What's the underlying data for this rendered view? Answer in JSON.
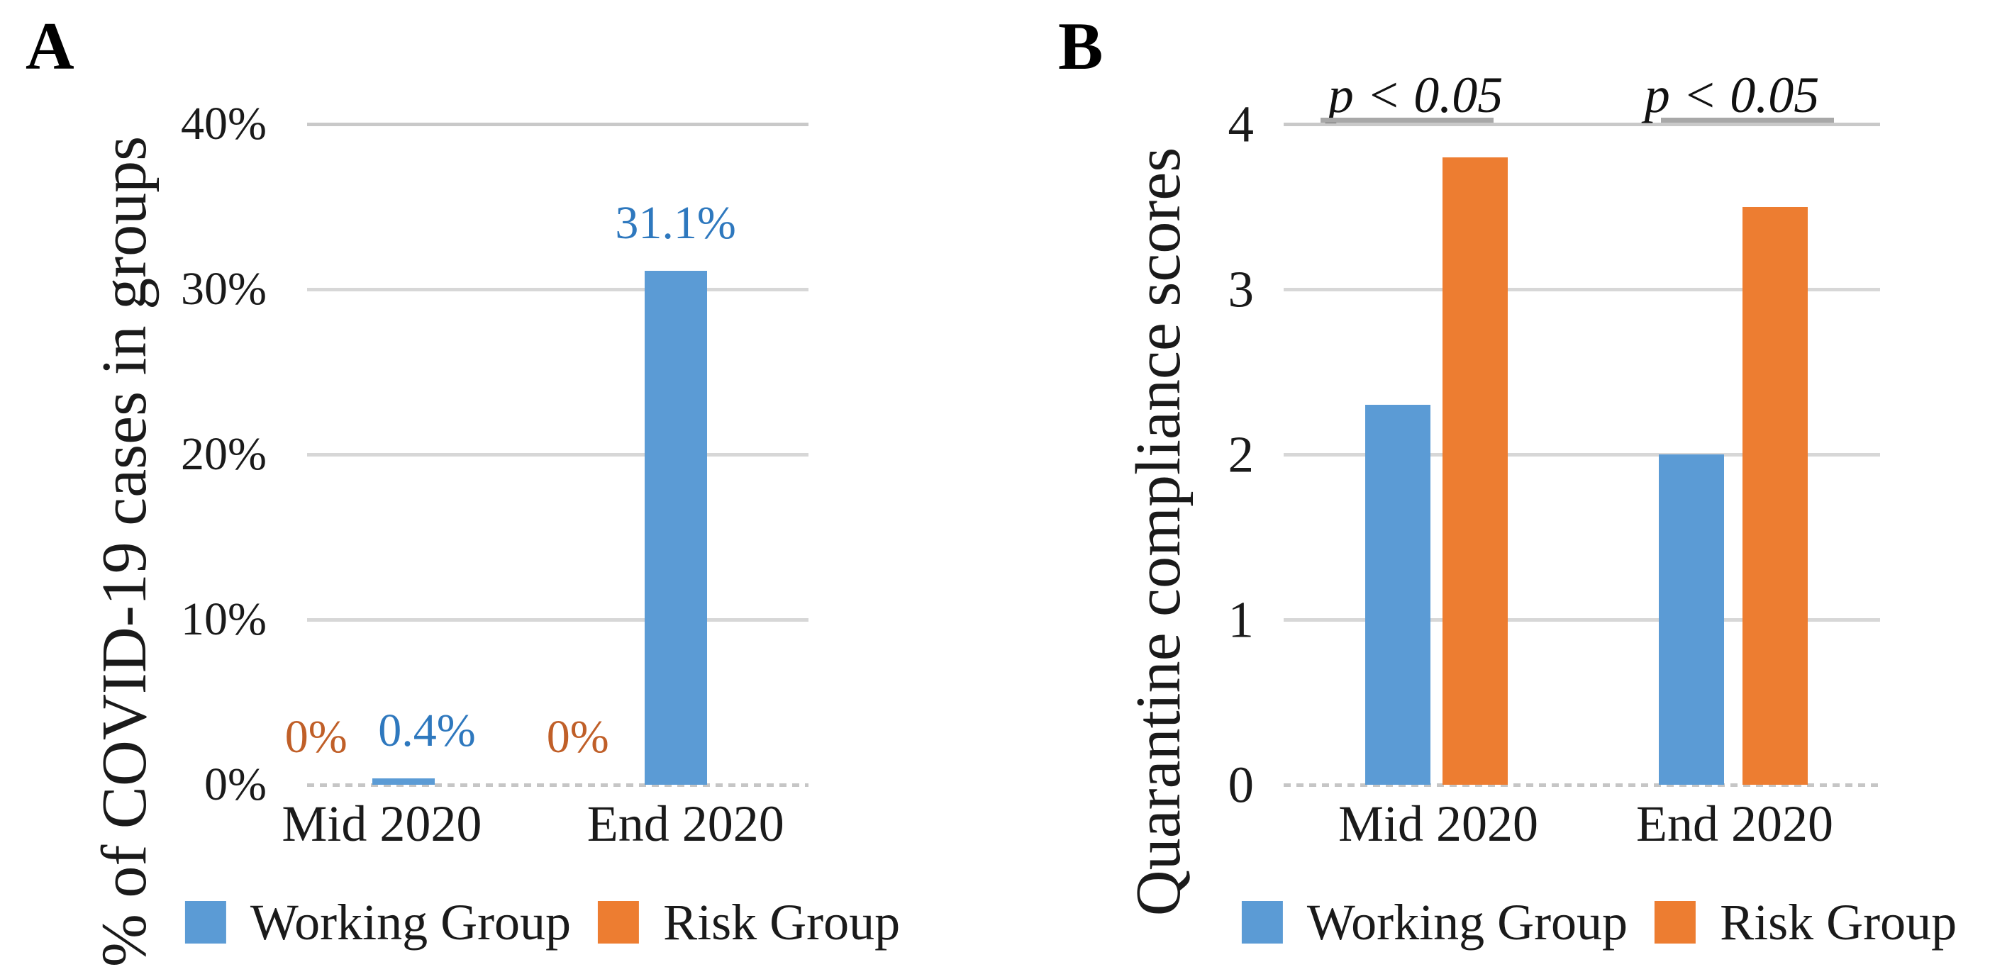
{
  "figure": {
    "panels": [
      {
        "letter": "A",
        "ylabel": "% of COVID-19 cases in groups"
      },
      {
        "letter": "B",
        "ylabel": "Quarantine compliance scores"
      }
    ]
  },
  "colors": {
    "working_group": "#5B9BD5",
    "risk_group": "#ED7D31",
    "working_label_text": "#2E78BE",
    "risk_label_text": "#C05F28",
    "gridline": "#d7d7d7",
    "significance_bar": "#a8a8a8"
  },
  "chart_data": [
    {
      "type": "bar",
      "panel": "A",
      "title": "",
      "ylabel": "% of COVID-19 cases in groups",
      "categories": [
        "Mid 2020",
        "End 2020"
      ],
      "series": [
        {
          "name": "Working Group",
          "color": "#5B9BD5",
          "values": [
            0.4,
            31.1
          ],
          "data_labels": [
            "0.4%",
            "31.1%"
          ],
          "data_label_color": "#2E78BE"
        },
        {
          "name": "Risk Group",
          "color": "#ED7D31",
          "values": [
            0,
            0
          ],
          "data_labels": [
            "0%",
            "0%"
          ],
          "data_label_color": "#C05F28"
        }
      ],
      "ylim": [
        0,
        40
      ],
      "yticks": [
        "0%",
        "10%",
        "20%",
        "30%",
        "40%"
      ],
      "grid": true,
      "legend_position": "bottom"
    },
    {
      "type": "bar",
      "panel": "B",
      "title": "",
      "ylabel": "Quarantine compliance scores",
      "categories": [
        "Mid 2020",
        "End 2020"
      ],
      "series": [
        {
          "name": "Working Group",
          "color": "#5B9BD5",
          "values": [
            2.3,
            2.0
          ]
        },
        {
          "name": "Risk Group",
          "color": "#ED7D31",
          "values": [
            3.8,
            3.5
          ]
        }
      ],
      "ylim": [
        0,
        4
      ],
      "yticks": [
        "0",
        "1",
        "2",
        "3",
        "4"
      ],
      "annotations": [
        {
          "text": "p < 0.05",
          "category": "Mid 2020"
        },
        {
          "text": "p < 0.05",
          "category": "End 2020"
        }
      ],
      "grid": true,
      "legend_position": "bottom"
    }
  ]
}
